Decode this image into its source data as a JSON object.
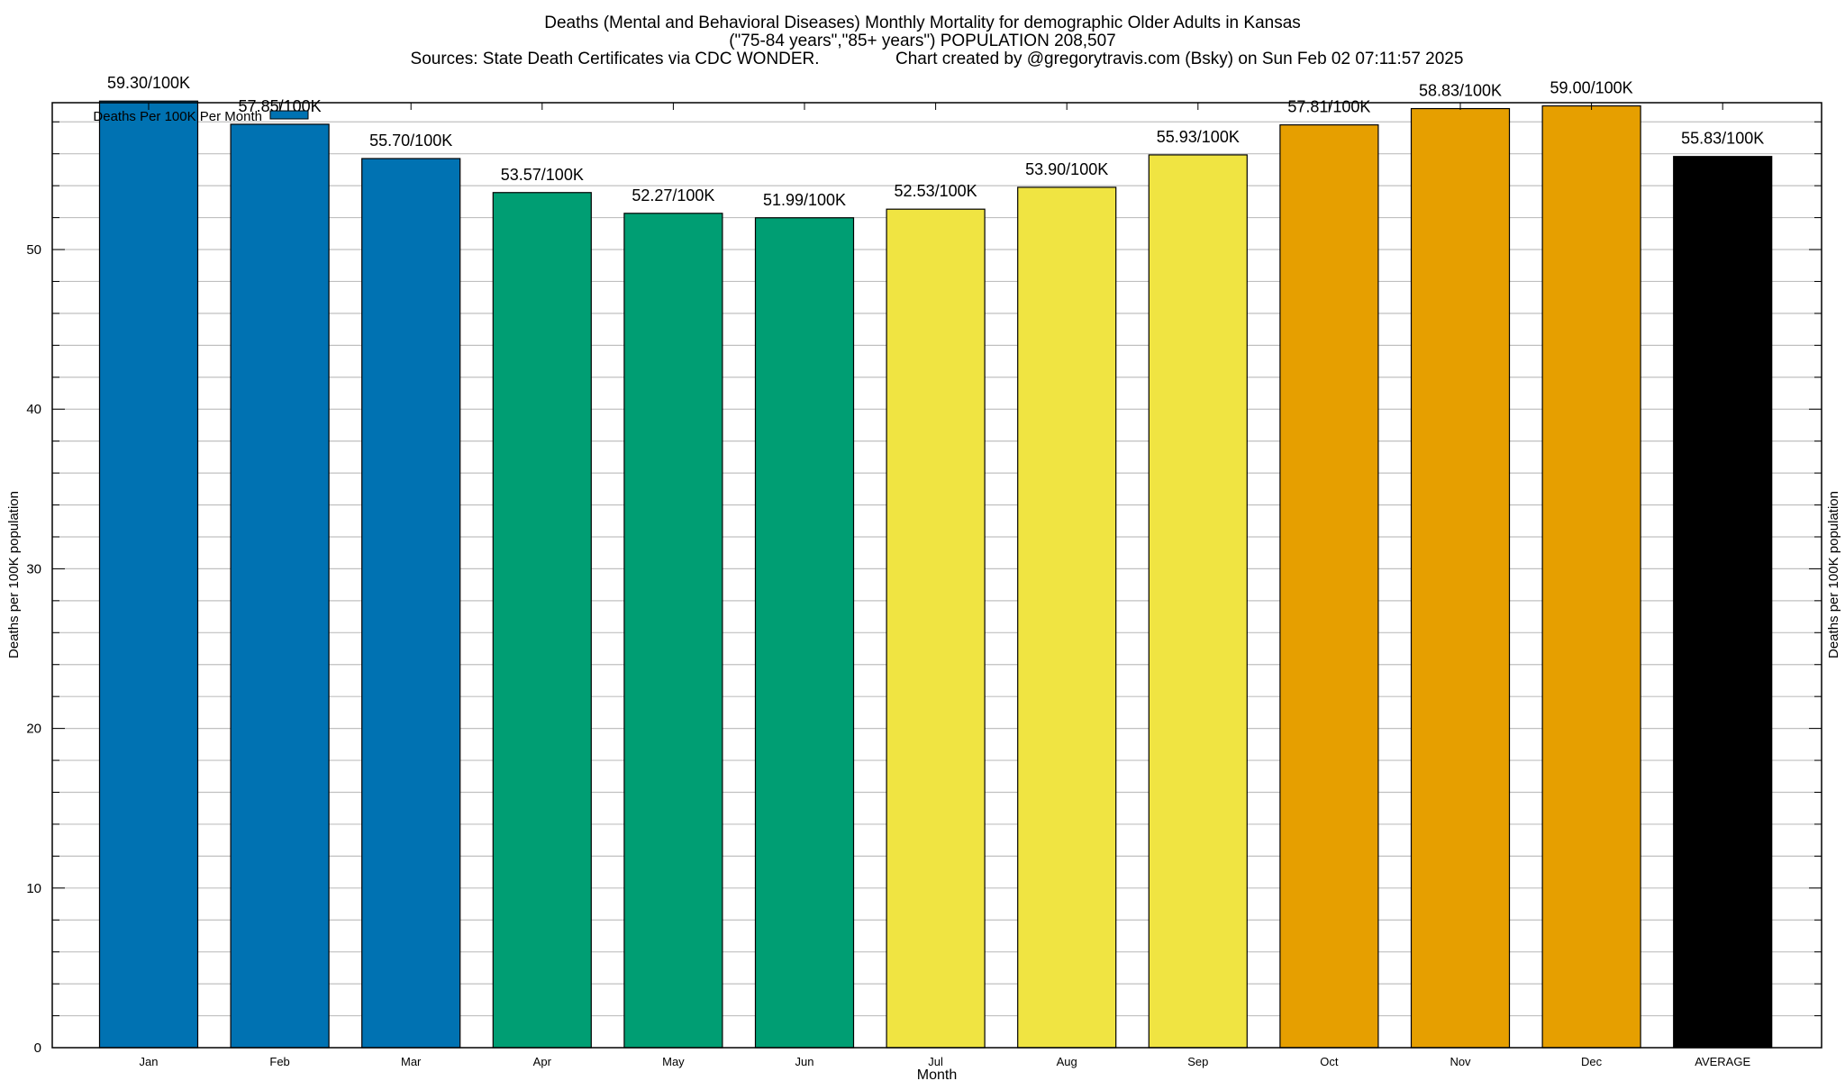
{
  "chart_data": {
    "type": "bar",
    "title_lines": [
      "Deaths (Mental and Behavioral Diseases) Monthly Mortality for demographic Older Adults in Kansas",
      "(\"75-84 years\",\"85+ years\") POPULATION 208,507",
      "Sources: State Death Certificates via CDC WONDER.                Chart created by @gregorytravis.com (Bsky) on Sun Feb 02 07:11:57 2025"
    ],
    "xlabel": "Month",
    "ylabel": "Deaths per 100K population",
    "y2label": "Deaths per 100K population",
    "ylim": [
      0,
      59.2
    ],
    "yticks": [
      0,
      10,
      20,
      30,
      40,
      50
    ],
    "grid": true,
    "legend": {
      "label": "Deaths Per 100K Per Month",
      "color": "#0072b2",
      "placement": "top-left"
    },
    "categories": [
      "Jan",
      "Feb",
      "Mar",
      "Apr",
      "May",
      "Jun",
      "Jul",
      "Aug",
      "Sep",
      "Oct",
      "Nov",
      "Dec",
      "AVERAGE"
    ],
    "values": [
      59.3,
      57.85,
      55.7,
      53.57,
      52.27,
      51.99,
      52.53,
      53.9,
      55.93,
      57.81,
      58.83,
      59.0,
      55.83
    ],
    "data_labels": [
      "59.30/100K",
      "57.85/100K",
      "55.70/100K",
      "53.57/100K",
      "52.27/100K",
      "51.99/100K",
      "52.53/100K",
      "53.90/100K",
      "55.93/100K",
      "57.81/100K",
      "58.83/100K",
      "59.00/100K",
      "55.83/100K"
    ],
    "colors": [
      "#0072b2",
      "#0072b2",
      "#0072b2",
      "#009e73",
      "#009e73",
      "#009e73",
      "#f0e442",
      "#f0e442",
      "#f0e442",
      "#e69f00",
      "#e69f00",
      "#e69f00",
      "#000000"
    ]
  }
}
